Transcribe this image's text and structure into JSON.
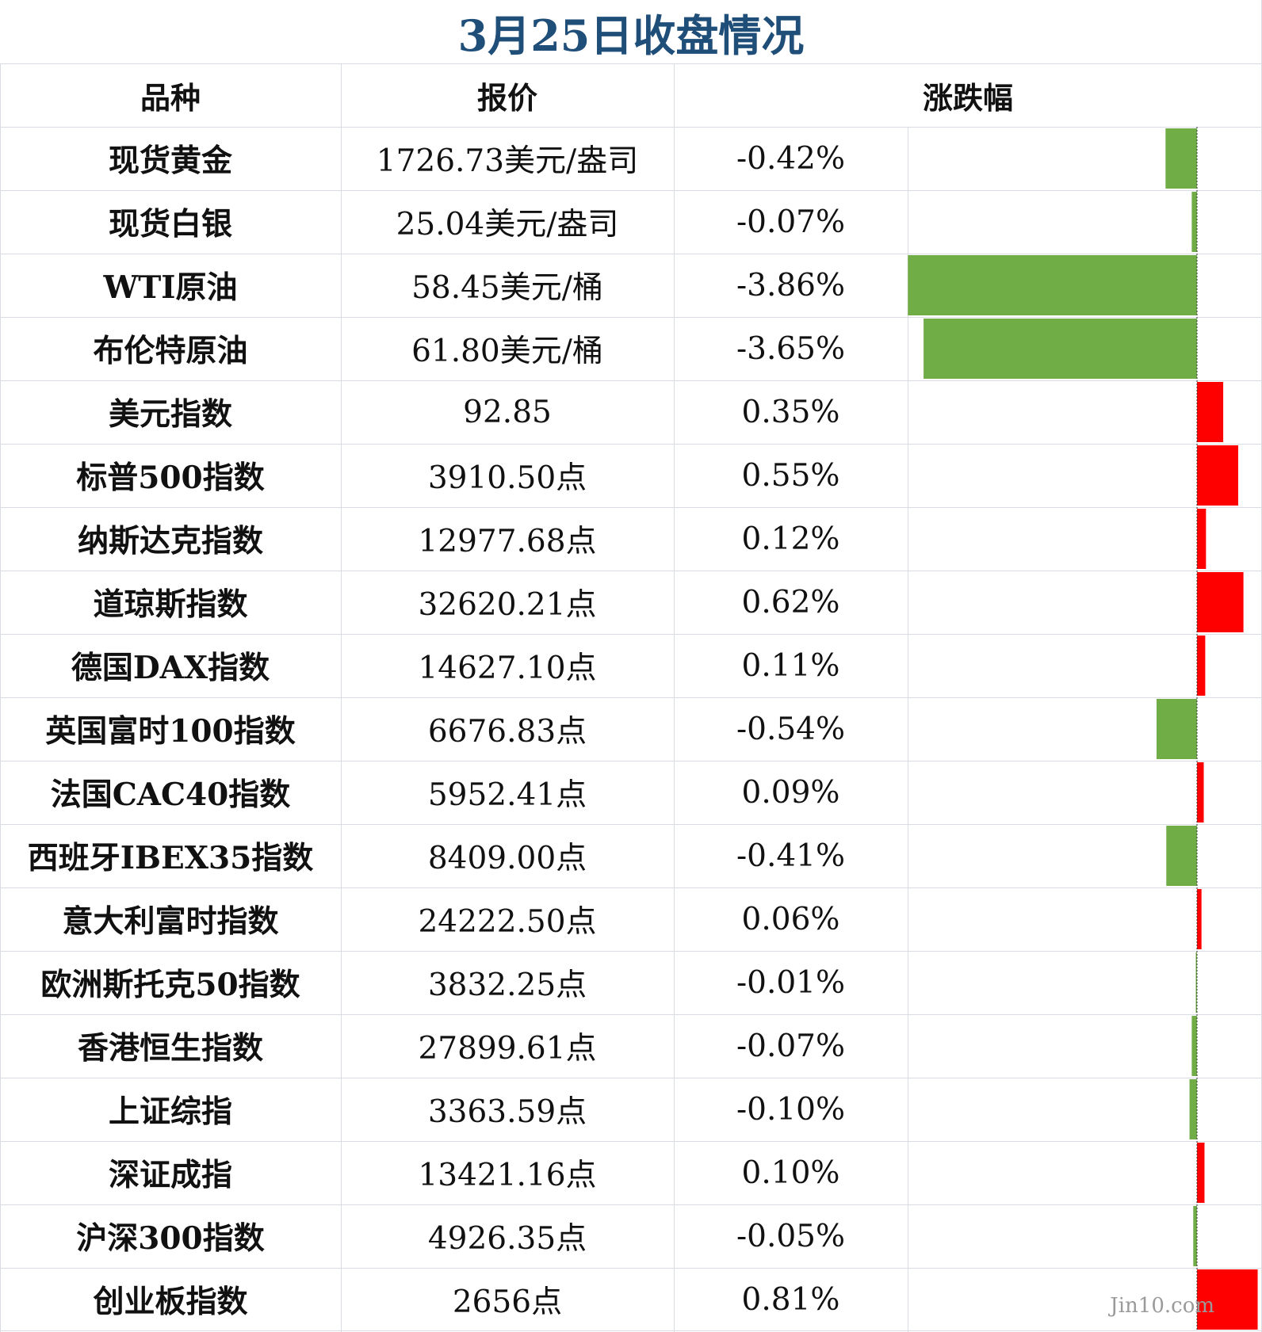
{
  "chart_data": {
    "type": "table",
    "title": "3月25日收盘情况",
    "columns": [
      "品种",
      "报价",
      "涨跌幅"
    ],
    "rows": [
      {
        "name": "现货黄金",
        "price": "1726.73美元/盎司",
        "change_text": "-0.42%",
        "change": -0.42
      },
      {
        "name": "现货白银",
        "price": "25.04美元/盎司",
        "change_text": "-0.07%",
        "change": -0.07
      },
      {
        "name": "WTI原油",
        "price": "58.45美元/桶",
        "change_text": "-3.86%",
        "change": -3.86
      },
      {
        "name": "布伦特原油",
        "price": "61.80美元/桶",
        "change_text": "-3.65%",
        "change": -3.65
      },
      {
        "name": "美元指数",
        "price": "92.85",
        "change_text": "0.35%",
        "change": 0.35
      },
      {
        "name": "标普500指数",
        "price": "3910.50点",
        "change_text": "0.55%",
        "change": 0.55
      },
      {
        "name": "纳斯达克指数",
        "price": "12977.68点",
        "change_text": "0.12%",
        "change": 0.12
      },
      {
        "name": "道琼斯指数",
        "price": "32620.21点",
        "change_text": "0.62%",
        "change": 0.62
      },
      {
        "name": "德国DAX指数",
        "price": "14627.10点",
        "change_text": "0.11%",
        "change": 0.11
      },
      {
        "name": "英国富时100指数",
        "price": "6676.83点",
        "change_text": "-0.54%",
        "change": -0.54
      },
      {
        "name": "法国CAC40指数",
        "price": "5952.41点",
        "change_text": "0.09%",
        "change": 0.09
      },
      {
        "name": "西班牙IBEX35指数",
        "price": "8409.00点",
        "change_text": "-0.41%",
        "change": -0.41
      },
      {
        "name": "意大利富时指数",
        "price": "24222.50点",
        "change_text": "0.06%",
        "change": 0.06
      },
      {
        "name": "欧洲斯托克50指数",
        "price": "3832.25点",
        "change_text": "-0.01%",
        "change": -0.01
      },
      {
        "name": "香港恒生指数",
        "price": "27899.61点",
        "change_text": "-0.07%",
        "change": -0.07
      },
      {
        "name": "上证综指",
        "price": "3363.59点",
        "change_text": "-0.10%",
        "change": -0.1
      },
      {
        "name": "深证成指",
        "price": "13421.16点",
        "change_text": "0.10%",
        "change": 0.1
      },
      {
        "name": "沪深300指数",
        "price": "4926.35点",
        "change_text": "-0.05%",
        "change": -0.05
      },
      {
        "name": "创业板指数",
        "price": "2656点",
        "change_text": "0.81%",
        "change": 0.81
      }
    ],
    "colors": {
      "up": "#ff0000",
      "down": "#70ad47"
    }
  },
  "watermark": "Jin10.com"
}
